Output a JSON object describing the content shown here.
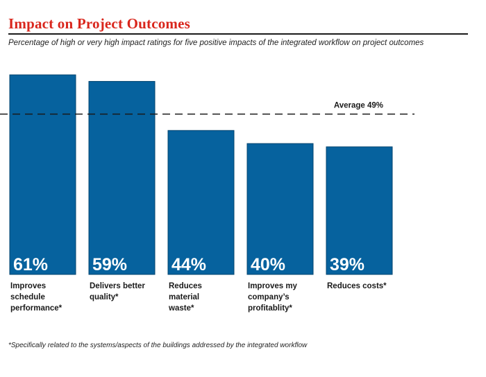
{
  "header": {
    "title": "Impact on Project Outcomes",
    "subtitle": "Percentage of high or very high impact ratings for five positive impacts of the integrated workflow on project outcomes"
  },
  "chart_data": {
    "type": "bar",
    "categories": [
      [
        "Improves",
        "schedule",
        "performance*"
      ],
      [
        "Delivers better",
        "quality*"
      ],
      [
        "Reduces",
        "material",
        "waste*"
      ],
      [
        "Improves my",
        "company’s",
        "profitablity*"
      ],
      [
        "Reduces costs*"
      ]
    ],
    "values": [
      61,
      59,
      44,
      40,
      39
    ],
    "value_labels": [
      "61%",
      "59%",
      "44%",
      "40%",
      "39%"
    ],
    "reference_line": {
      "value": 49,
      "label": "Average 49%"
    },
    "ylim": [
      0,
      61
    ],
    "colors": {
      "bar": "#06629e",
      "bar_edge": "#03446f",
      "value_text": "#ffffff",
      "reference": "#1a1a1a"
    }
  },
  "footnote": "*Specifically related to the systems/aspects of the buildings addressed by the integrated workflow"
}
